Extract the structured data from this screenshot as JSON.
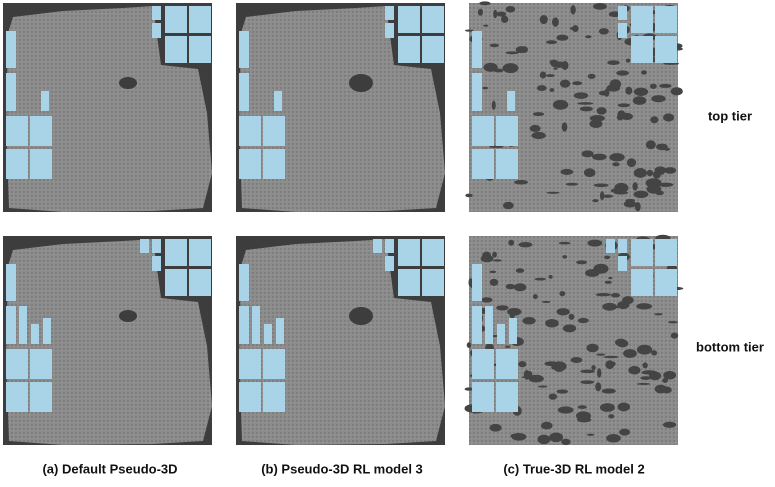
{
  "columns": [
    "(a) Default Pseudo-3D",
    "(b) Pseudo-3D RL model 3",
    "(c) True-3D RL model 2"
  ],
  "rows": [
    "top tier",
    "bottom tier"
  ]
}
